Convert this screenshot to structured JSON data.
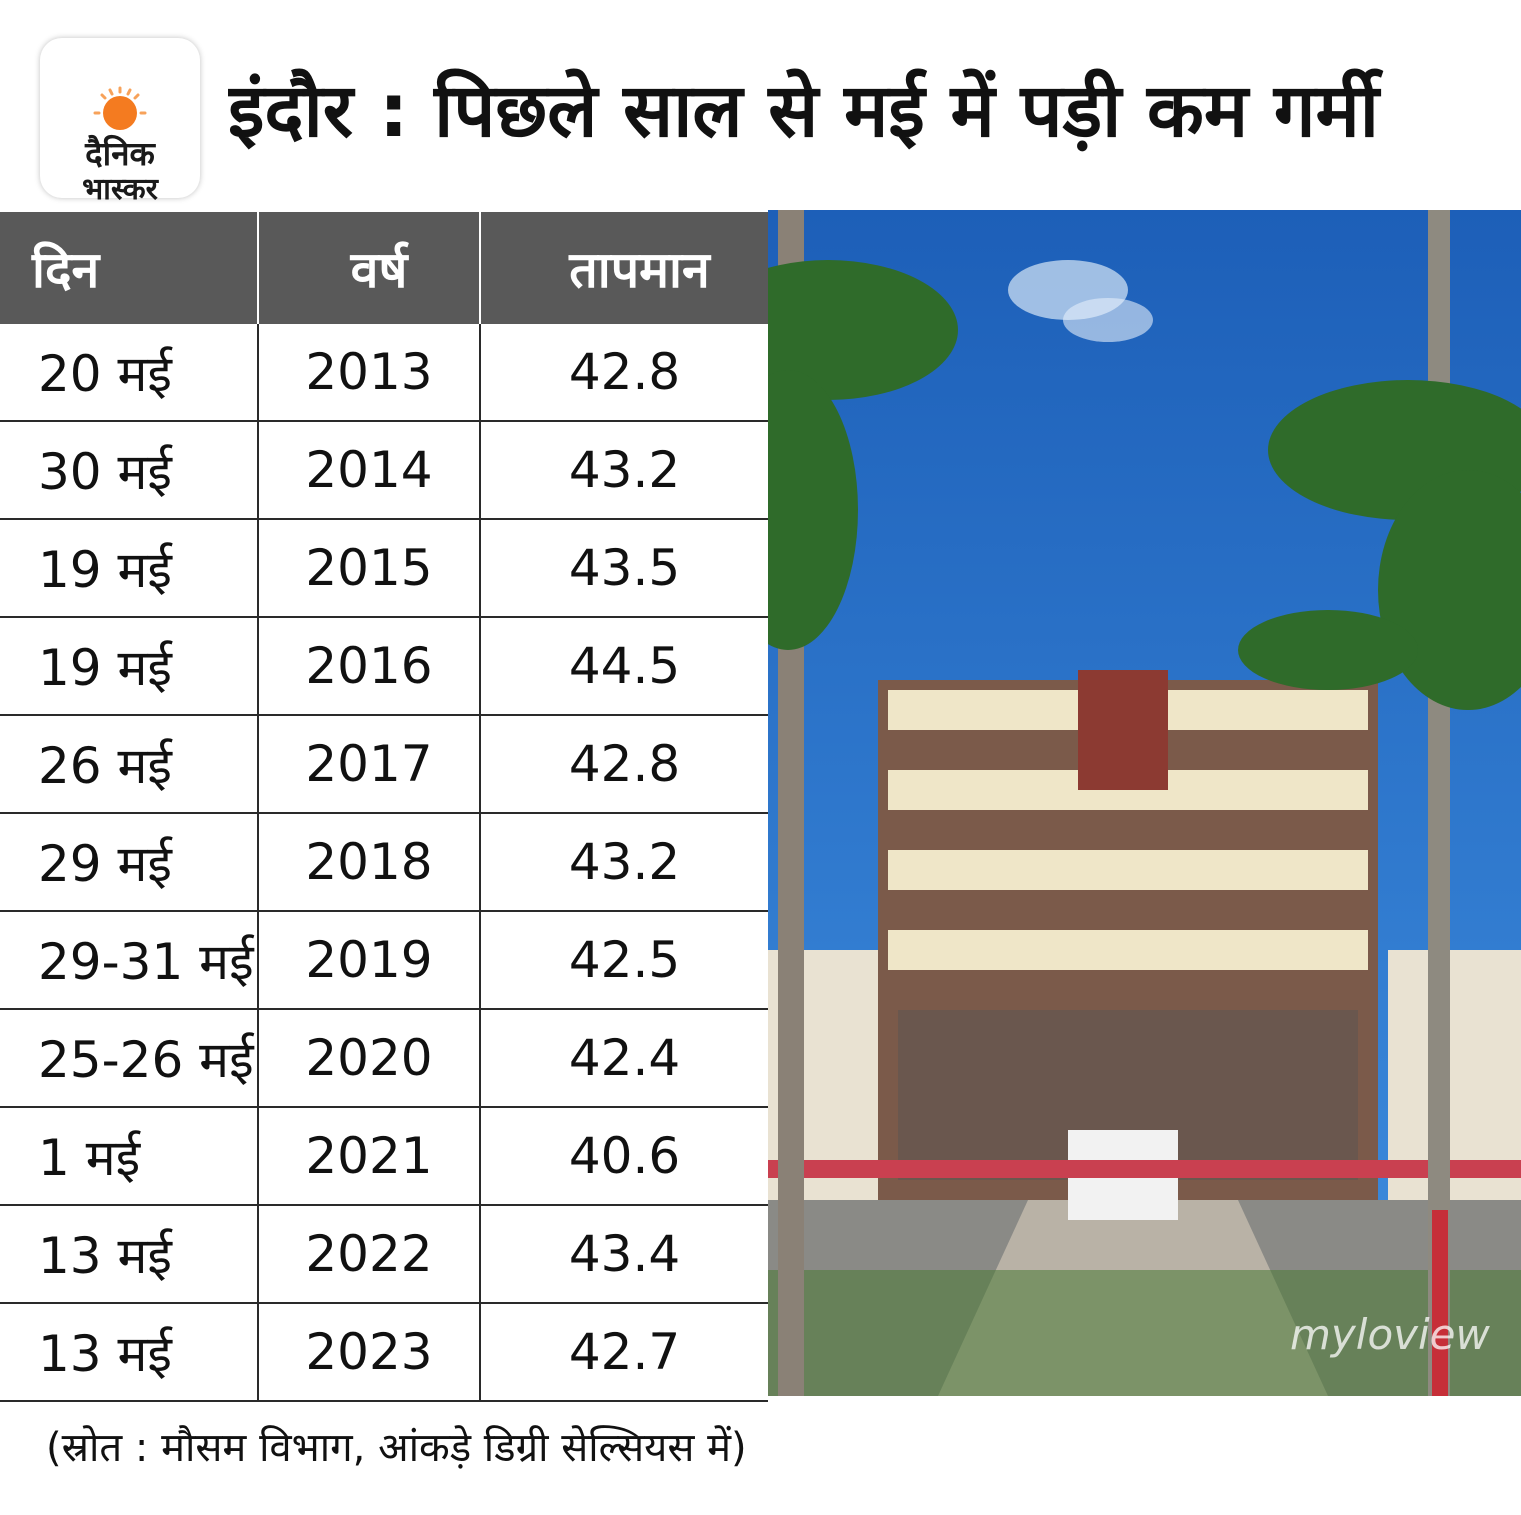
{
  "logo": {
    "line1": "दैनिक",
    "line2": "भास्कर"
  },
  "title": "इंदौर : पिछले साल से मई में पड़ी कम गर्मी",
  "chart_data": {
    "type": "table",
    "columns": [
      "दिन",
      "वर्ष",
      "तापमान"
    ],
    "rows": [
      [
        "20 मई",
        "2013",
        "42.8"
      ],
      [
        "30 मई",
        "2014",
        "43.2"
      ],
      [
        "19 मई",
        "2015",
        "43.5"
      ],
      [
        "19 मई",
        "2016",
        "44.5"
      ],
      [
        "26 मई",
        "2017",
        "42.8"
      ],
      [
        "29 मई",
        "2018",
        "43.2"
      ],
      [
        "29-31 मई",
        "2019",
        "42.5"
      ],
      [
        "25-26 मई",
        "2020",
        "42.4"
      ],
      [
        "1 मई",
        "2021",
        "40.6"
      ],
      [
        "13 मई",
        "2022",
        "43.4"
      ],
      [
        "13 मई",
        "2023",
        "42.7"
      ]
    ]
  },
  "photo": {
    "watermark": "myloview"
  },
  "source_note": "(स्रोत : मौसम विभाग, आंकड़े डिग्री सेल्सियस में)",
  "colors": {
    "header_bg": "#595959",
    "logo_sun": "#f47b20",
    "sky": "#1f66c2"
  }
}
